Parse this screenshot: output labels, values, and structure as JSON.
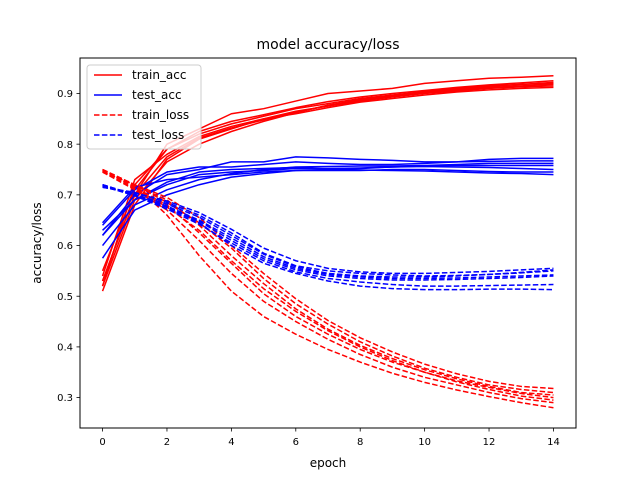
{
  "chart_data": {
    "type": "line",
    "title": "model accuracy/loss",
    "xlabel": "epoch",
    "ylabel": "accuracy/loss",
    "xlim": [
      -0.7,
      14.7
    ],
    "ylim": [
      0.24,
      0.97
    ],
    "xticks": [
      0,
      2,
      4,
      6,
      8,
      10,
      12,
      14
    ],
    "yticks": [
      0.3,
      0.4,
      0.5,
      0.6,
      0.7,
      0.8,
      0.9
    ],
    "grid": false,
    "legend_position": "top-left",
    "x": [
      0,
      1,
      2,
      3,
      4,
      5,
      6,
      7,
      8,
      9,
      10,
      11,
      12,
      13,
      14
    ],
    "legend": [
      {
        "label": "train_acc",
        "color": "#ff0000",
        "style": "solid"
      },
      {
        "label": "test_acc",
        "color": "#0000ff",
        "style": "solid"
      },
      {
        "label": "train_loss",
        "color": "#ff0000",
        "style": "dashed"
      },
      {
        "label": "test_loss",
        "color": "#0000ff",
        "style": "dashed"
      }
    ],
    "series": [
      {
        "group": "train_acc",
        "color": "#ff0000",
        "style": "solid",
        "values": [
          0.52,
          0.72,
          0.79,
          0.82,
          0.84,
          0.855,
          0.87,
          0.88,
          0.89,
          0.897,
          0.904,
          0.91,
          0.915,
          0.918,
          0.92
        ]
      },
      {
        "group": "train_acc",
        "color": "#ff0000",
        "style": "solid",
        "values": [
          0.53,
          0.7,
          0.8,
          0.83,
          0.86,
          0.87,
          0.885,
          0.9,
          0.905,
          0.91,
          0.92,
          0.925,
          0.93,
          0.932,
          0.935
        ]
      },
      {
        "group": "train_acc",
        "color": "#ff0000",
        "style": "solid",
        "values": [
          0.51,
          0.68,
          0.77,
          0.81,
          0.83,
          0.85,
          0.865,
          0.875,
          0.885,
          0.893,
          0.9,
          0.905,
          0.91,
          0.913,
          0.915
        ]
      },
      {
        "group": "train_acc",
        "color": "#ff0000",
        "style": "solid",
        "values": [
          0.54,
          0.73,
          0.78,
          0.815,
          0.835,
          0.85,
          0.86,
          0.872,
          0.883,
          0.89,
          0.897,
          0.903,
          0.907,
          0.91,
          0.912
        ]
      },
      {
        "group": "train_acc",
        "color": "#ff0000",
        "style": "solid",
        "values": [
          0.52,
          0.69,
          0.765,
          0.8,
          0.825,
          0.845,
          0.862,
          0.877,
          0.888,
          0.896,
          0.902,
          0.908,
          0.914,
          0.918,
          0.922
        ]
      },
      {
        "group": "train_acc",
        "color": "#ff0000",
        "style": "solid",
        "values": [
          0.55,
          0.71,
          0.79,
          0.825,
          0.845,
          0.858,
          0.872,
          0.884,
          0.893,
          0.9,
          0.906,
          0.912,
          0.917,
          0.921,
          0.925
        ]
      },
      {
        "group": "train_acc",
        "color": "#ff0000",
        "style": "solid",
        "values": [
          0.53,
          0.7,
          0.775,
          0.812,
          0.832,
          0.848,
          0.863,
          0.876,
          0.887,
          0.895,
          0.901,
          0.907,
          0.912,
          0.915,
          0.918
        ]
      },
      {
        "group": "test_acc",
        "color": "#0000ff",
        "style": "solid",
        "values": [
          0.62,
          0.7,
          0.74,
          0.75,
          0.765,
          0.765,
          0.775,
          0.773,
          0.77,
          0.768,
          0.765,
          0.765,
          0.766,
          0.767,
          0.767
        ]
      },
      {
        "group": "test_acc",
        "color": "#0000ff",
        "style": "solid",
        "values": [
          0.64,
          0.71,
          0.745,
          0.755,
          0.755,
          0.76,
          0.765,
          0.762,
          0.76,
          0.76,
          0.762,
          0.765,
          0.77,
          0.772,
          0.772
        ]
      },
      {
        "group": "test_acc",
        "color": "#0000ff",
        "style": "solid",
        "values": [
          0.575,
          0.67,
          0.7,
          0.72,
          0.735,
          0.742,
          0.748,
          0.748,
          0.748,
          0.75,
          0.75,
          0.748,
          0.746,
          0.745,
          0.745
        ]
      },
      {
        "group": "test_acc",
        "color": "#0000ff",
        "style": "solid",
        "values": [
          0.63,
          0.69,
          0.72,
          0.74,
          0.745,
          0.748,
          0.752,
          0.752,
          0.753,
          0.755,
          0.756,
          0.755,
          0.754,
          0.752,
          0.75
        ]
      },
      {
        "group": "test_acc",
        "color": "#0000ff",
        "style": "solid",
        "values": [
          0.645,
          0.715,
          0.73,
          0.735,
          0.74,
          0.745,
          0.748,
          0.75,
          0.752,
          0.755,
          0.757,
          0.758,
          0.758,
          0.758,
          0.758
        ]
      },
      {
        "group": "test_acc",
        "color": "#0000ff",
        "style": "solid",
        "values": [
          0.6,
          0.68,
          0.71,
          0.73,
          0.742,
          0.75,
          0.755,
          0.756,
          0.757,
          0.757,
          0.758,
          0.76,
          0.762,
          0.762,
          0.762
        ]
      },
      {
        "group": "test_acc",
        "color": "#0000ff",
        "style": "solid",
        "values": [
          0.62,
          0.69,
          0.725,
          0.745,
          0.75,
          0.752,
          0.754,
          0.751,
          0.749,
          0.748,
          0.747,
          0.745,
          0.743,
          0.742,
          0.74
        ]
      },
      {
        "group": "train_loss",
        "color": "#ff0000",
        "style": "dashed",
        "values": [
          0.75,
          0.72,
          0.66,
          0.58,
          0.51,
          0.46,
          0.425,
          0.395,
          0.37,
          0.348,
          0.33,
          0.315,
          0.302,
          0.29,
          0.28
        ]
      },
      {
        "group": "train_loss",
        "color": "#ff0000",
        "style": "dashed",
        "values": [
          0.745,
          0.71,
          0.67,
          0.61,
          0.545,
          0.49,
          0.45,
          0.415,
          0.385,
          0.36,
          0.34,
          0.325,
          0.31,
          0.298,
          0.29
        ]
      },
      {
        "group": "train_loss",
        "color": "#ff0000",
        "style": "dashed",
        "values": [
          0.75,
          0.715,
          0.68,
          0.625,
          0.565,
          0.505,
          0.46,
          0.425,
          0.395,
          0.37,
          0.35,
          0.333,
          0.32,
          0.308,
          0.3
        ]
      },
      {
        "group": "train_loss",
        "color": "#ff0000",
        "style": "dashed",
        "values": [
          0.748,
          0.718,
          0.69,
          0.64,
          0.58,
          0.525,
          0.475,
          0.435,
          0.403,
          0.377,
          0.355,
          0.337,
          0.322,
          0.31,
          0.305
        ]
      },
      {
        "group": "train_loss",
        "color": "#ff0000",
        "style": "dashed",
        "values": [
          0.745,
          0.72,
          0.685,
          0.645,
          0.595,
          0.535,
          0.485,
          0.445,
          0.41,
          0.382,
          0.358,
          0.34,
          0.325,
          0.316,
          0.31
        ]
      },
      {
        "group": "train_loss",
        "color": "#ff0000",
        "style": "dashed",
        "values": [
          0.75,
          0.72,
          0.695,
          0.655,
          0.6,
          0.545,
          0.495,
          0.452,
          0.418,
          0.39,
          0.366,
          0.347,
          0.332,
          0.322,
          0.318
        ]
      },
      {
        "group": "train_loss",
        "color": "#ff0000",
        "style": "dashed",
        "values": [
          0.747,
          0.712,
          0.676,
          0.63,
          0.57,
          0.515,
          0.47,
          0.432,
          0.4,
          0.373,
          0.35,
          0.331,
          0.316,
          0.303,
          0.295
        ]
      },
      {
        "group": "test_loss",
        "color": "#0000ff",
        "style": "dashed",
        "values": [
          0.72,
          0.7,
          0.675,
          0.645,
          0.6,
          0.565,
          0.545,
          0.53,
          0.52,
          0.515,
          0.513,
          0.513,
          0.514,
          0.514,
          0.513
        ]
      },
      {
        "group": "test_loss",
        "color": "#0000ff",
        "style": "dashed",
        "values": [
          0.715,
          0.705,
          0.685,
          0.66,
          0.625,
          0.585,
          0.56,
          0.55,
          0.545,
          0.542,
          0.54,
          0.541,
          0.543,
          0.546,
          0.55
        ]
      },
      {
        "group": "test_loss",
        "color": "#0000ff",
        "style": "dashed",
        "values": [
          0.72,
          0.7,
          0.678,
          0.65,
          0.615,
          0.578,
          0.555,
          0.543,
          0.538,
          0.535,
          0.535,
          0.536,
          0.538,
          0.54,
          0.542
        ]
      },
      {
        "group": "test_loss",
        "color": "#0000ff",
        "style": "dashed",
        "values": [
          0.718,
          0.698,
          0.672,
          0.642,
          0.605,
          0.57,
          0.548,
          0.535,
          0.528,
          0.523,
          0.52,
          0.52,
          0.521,
          0.522,
          0.523
        ]
      },
      {
        "group": "test_loss",
        "color": "#0000ff",
        "style": "dashed",
        "values": [
          0.715,
          0.703,
          0.688,
          0.665,
          0.632,
          0.595,
          0.57,
          0.555,
          0.548,
          0.545,
          0.545,
          0.547,
          0.549,
          0.552,
          0.555
        ]
      },
      {
        "group": "test_loss",
        "color": "#0000ff",
        "style": "dashed",
        "values": [
          0.72,
          0.7,
          0.682,
          0.656,
          0.62,
          0.583,
          0.558,
          0.545,
          0.54,
          0.538,
          0.538,
          0.54,
          0.543,
          0.547,
          0.552
        ]
      },
      {
        "group": "test_loss",
        "color": "#0000ff",
        "style": "dashed",
        "values": [
          0.717,
          0.699,
          0.676,
          0.648,
          0.61,
          0.574,
          0.552,
          0.54,
          0.535,
          0.532,
          0.532,
          0.533,
          0.535,
          0.537,
          0.54
        ]
      }
    ]
  }
}
